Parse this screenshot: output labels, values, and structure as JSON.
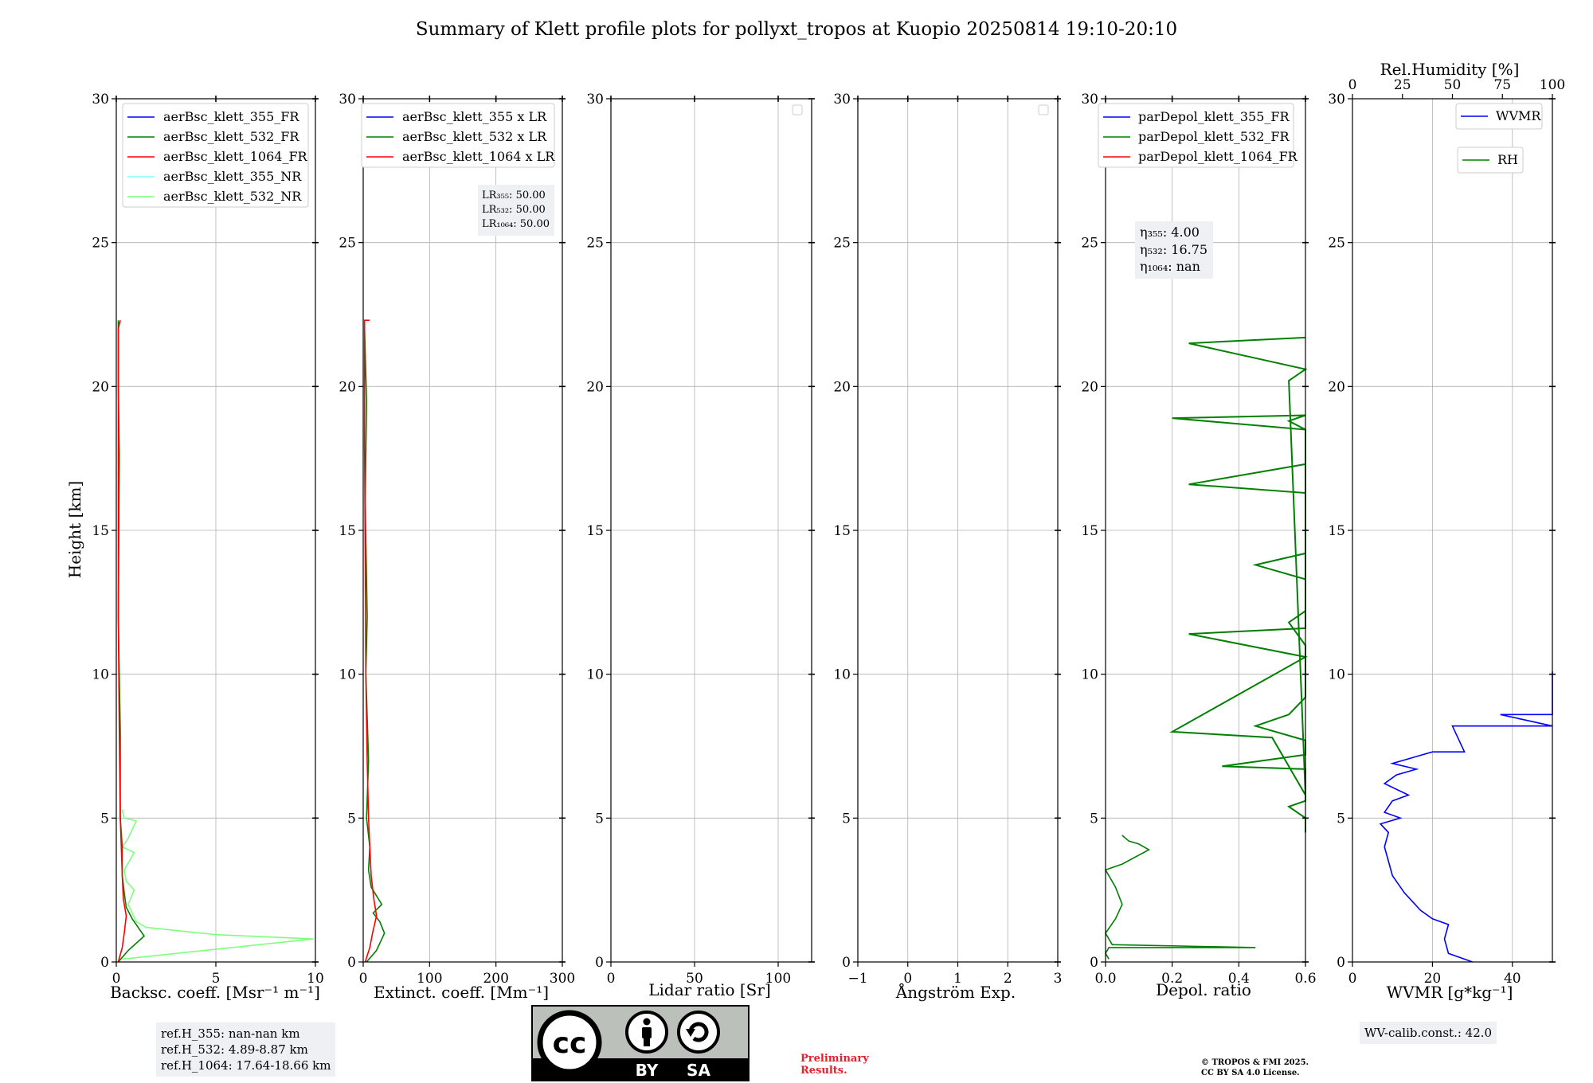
{
  "title": "Summary of Klett profile plots for pollyxt_tropos at Kuopio 20250814 19:10-20:10",
  "colors": {
    "blue": "#0000ff",
    "green": "#008000",
    "red": "#ff0000",
    "cyan": "#7fffff",
    "lightgreen": "#7fff7f",
    "grid": "#b0b0b0",
    "notebox": "#eef0f3",
    "prelim": "#e8202a"
  },
  "notes": {
    "ref_355": "ref.H_355: nan-nan km",
    "ref_532": "ref.H_532: 4.89-8.87 km",
    "ref_1064": "ref.H_1064: 17.64-18.66 km",
    "wv_calib": "WV-calib.const.: 42.0",
    "preliminary_line1": "Preliminary",
    "preliminary_line2": "Results.",
    "copyright_line1": "© TROPOS & FMI 2025.",
    "copyright_line2": "CC BY SA 4.0 License."
  },
  "license_logo": {
    "cc": "cc",
    "by": "BY",
    "sa": "SA"
  },
  "chart_data": [
    {
      "type": "line",
      "id": "backscatter",
      "xlabel": "Backsc. coeff. [Msr⁻¹ m⁻¹]",
      "ylabel": "Height [km]",
      "xlim": [
        0,
        10
      ],
      "ylim": [
        0,
        30
      ],
      "xticks": [
        0,
        5,
        10
      ],
      "yticks": [
        0,
        5,
        10,
        15,
        20,
        25,
        30
      ],
      "legend": [
        "aerBsc_klett_355_FR",
        "aerBsc_klett_532_FR",
        "aerBsc_klett_1064_FR",
        "aerBsc_klett_355_NR",
        "aerBsc_klett_532_NR"
      ],
      "series": [
        {
          "name": "aerBsc_klett_532_NR",
          "color": "lightgreen",
          "x": [
            0.3,
            9.9,
            5.0,
            1.5,
            1.0,
            0.8,
            0.6,
            0.9,
            0.5,
            0.4,
            0.9,
            0.3,
            0.6,
            1.0,
            0.4,
            0.3
          ],
          "y": [
            0.1,
            0.8,
            0.95,
            1.2,
            1.4,
            1.7,
            2.0,
            2.5,
            2.8,
            3.2,
            3.8,
            4.0,
            4.3,
            4.9,
            5.0,
            5.3
          ]
        },
        {
          "name": "aerBsc_klett_532_FR",
          "color": "green",
          "x": [
            0.1,
            0.6,
            1.4,
            0.8,
            0.5,
            0.4,
            0.3,
            0.3,
            0.2,
            0.2,
            0.1,
            0.15,
            0.1,
            0.1
          ],
          "y": [
            0.0,
            0.4,
            0.9,
            1.5,
            1.9,
            2.4,
            3.0,
            4.0,
            5.0,
            8.0,
            12.0,
            17.6,
            20.0,
            22.3
          ]
        },
        {
          "name": "aerBsc_klett_1064_FR",
          "color": "red",
          "x": [
            0.1,
            0.3,
            0.4,
            0.5,
            0.35,
            0.3,
            0.25,
            0.2,
            0.15,
            0.1,
            0.1,
            0.1,
            0.2
          ],
          "y": [
            0.0,
            0.5,
            1.0,
            1.6,
            2.2,
            3.0,
            4.0,
            5.0,
            8.0,
            12.0,
            18.0,
            22.0,
            22.3
          ]
        }
      ]
    },
    {
      "type": "line",
      "id": "extinction",
      "xlabel": "Extinct. coeff. [Mm⁻¹]",
      "xlim": [
        0,
        300
      ],
      "ylim": [
        0,
        30
      ],
      "xticks": [
        0,
        100,
        200,
        300
      ],
      "yticks": [
        0,
        5,
        10,
        15,
        20,
        25,
        30
      ],
      "legend": [
        "aerBsc_klett_355 x LR",
        "aerBsc_klett_532 x LR",
        "aerBsc_klett_1064 x LR"
      ],
      "lidar_ratio_labels": [
        "LR₃₅₅: 50.00",
        "LR₅₃₂: 50.00",
        "LR₁₀₆₄: 50.00"
      ],
      "series": [
        {
          "name": "aerBsc_klett_532 x LR",
          "color": "green",
          "x": [
            5,
            20,
            32,
            25,
            15,
            28,
            12,
            8,
            10,
            5,
            8,
            4,
            6,
            3,
            5,
            2
          ],
          "y": [
            0.0,
            0.4,
            1.0,
            1.4,
            1.7,
            2.0,
            2.6,
            3.2,
            4.0,
            5.0,
            7.0,
            10.0,
            12.0,
            16.0,
            19.5,
            22.0
          ]
        },
        {
          "name": "aerBsc_klett_1064 x LR",
          "color": "red",
          "x": [
            3,
            10,
            14,
            20,
            16,
            12,
            10,
            8,
            6,
            4,
            3,
            2,
            2,
            10
          ],
          "y": [
            0.0,
            0.5,
            1.0,
            1.6,
            2.2,
            3.0,
            4.0,
            5.0,
            7.0,
            10.0,
            14.0,
            18.0,
            22.3,
            22.3
          ]
        }
      ]
    },
    {
      "type": "line",
      "id": "lidar_ratio",
      "xlabel": "Lidar ratio [Sr]",
      "xlim": [
        0,
        120
      ],
      "ylim": [
        0,
        30
      ],
      "xticks": [
        0,
        50,
        100
      ],
      "yticks": [
        0,
        5,
        10,
        15,
        20,
        25,
        30
      ],
      "series": []
    },
    {
      "type": "line",
      "id": "angstrom",
      "xlabel": "Ångström Exp.",
      "xlim": [
        -1,
        3
      ],
      "ylim": [
        0,
        30
      ],
      "xticks": [
        -1,
        0,
        1,
        2,
        3
      ],
      "yticks": [
        0,
        5,
        10,
        15,
        20,
        25,
        30
      ],
      "series": []
    },
    {
      "type": "line",
      "id": "depol",
      "xlabel": "Depol. ratio",
      "xlim": [
        0.0,
        0.6
      ],
      "ylim": [
        0,
        30
      ],
      "xticks": [
        0.0,
        0.2,
        0.4,
        0.6
      ],
      "yticks": [
        0,
        5,
        10,
        15,
        20,
        25,
        30
      ],
      "legend": [
        "parDepol_klett_355_FR",
        "parDepol_klett_532_FR",
        "parDepol_klett_1064_FR"
      ],
      "eta_labels": [
        "η₃₅₅: 4.00",
        "η₅₃₂: 16.75",
        "η₁₀₆₄: nan"
      ],
      "series": [
        {
          "name": "parDepol_klett_532_FR",
          "color": "green",
          "x": [
            0.01,
            0.0,
            0.01,
            0.45,
            0.02,
            0.0,
            0.03,
            0.05,
            0.03,
            0.0,
            0.05,
            0.13,
            0.1,
            0.07,
            0.05
          ],
          "y": [
            0.1,
            0.3,
            0.5,
            0.5,
            0.6,
            1.0,
            1.5,
            2.0,
            2.6,
            3.2,
            3.4,
            3.9,
            4.1,
            4.2,
            4.4
          ]
        },
        {
          "name": "parDepol_klett_532_FR_spikes",
          "color": "green",
          "x": [
            0.6,
            0.6,
            0.6,
            0.55,
            0.6,
            0.6,
            0.35,
            0.6,
            0.6,
            0.6,
            0.45,
            0.55,
            0.6,
            0.6,
            0.6,
            0.6,
            0.6,
            0.6,
            0.55,
            0.6,
            0.6,
            0.6,
            0.45,
            0.6,
            0.6,
            0.6,
            0.6,
            0.6,
            0.25,
            0.6,
            0.6,
            0.6,
            0.2,
            0.6,
            0.55,
            0.6,
            0.6,
            0.6,
            0.6,
            0.6,
            0.25,
            0.6,
            0.2,
            0.5,
            0.6,
            0.55,
            0.6,
            0.25,
            0.6
          ],
          "y": [
            4.5,
            4.8,
            5.0,
            5.4,
            5.6,
            6.7,
            6.8,
            7.2,
            7.5,
            7.7,
            8.2,
            8.6,
            9.2,
            9.5,
            9.8,
            10.3,
            10.7,
            11.0,
            11.8,
            12.2,
            12.6,
            13.3,
            13.8,
            14.2,
            14.6,
            15.0,
            15.4,
            16.3,
            16.6,
            17.3,
            18.0,
            18.5,
            18.9,
            19.0,
            18.8,
            18.5,
            17.4,
            16.7,
            12.5,
            11.6,
            11.4,
            10.6,
            8.0,
            7.8,
            5.8,
            20.2,
            20.6,
            21.5,
            21.7
          ]
        }
      ]
    },
    {
      "type": "line",
      "id": "wvmr",
      "xlabel": "WVMR [g*kg⁻¹]",
      "xlim": [
        0,
        50
      ],
      "ylim": [
        0,
        30
      ],
      "xticks": [
        0,
        20,
        40
      ],
      "yticks": [
        0,
        5,
        10,
        15,
        20,
        25,
        30
      ],
      "top_axis_label": "Rel.Humidity [%]",
      "top_xlim": [
        0,
        100
      ],
      "top_xticks": [
        0,
        25,
        50,
        75,
        100
      ],
      "legend": [
        "WVMR",
        "RH"
      ],
      "series": [
        {
          "name": "WVMR",
          "color": "blue",
          "x": [
            30,
            24,
            23,
            24,
            20,
            17,
            15,
            13,
            11,
            10,
            9,
            8,
            9,
            7,
            12,
            8,
            10,
            14,
            8,
            11,
            16,
            10,
            20,
            28,
            25,
            50,
            37,
            50,
            50
          ],
          "y": [
            0.0,
            0.3,
            0.8,
            1.3,
            1.5,
            1.8,
            2.1,
            2.4,
            2.8,
            3.0,
            3.5,
            4.0,
            4.5,
            4.8,
            5.0,
            5.2,
            5.6,
            5.8,
            6.2,
            6.5,
            6.7,
            6.9,
            7.3,
            7.3,
            8.2,
            8.2,
            8.6,
            8.6,
            10.1
          ]
        }
      ]
    }
  ]
}
